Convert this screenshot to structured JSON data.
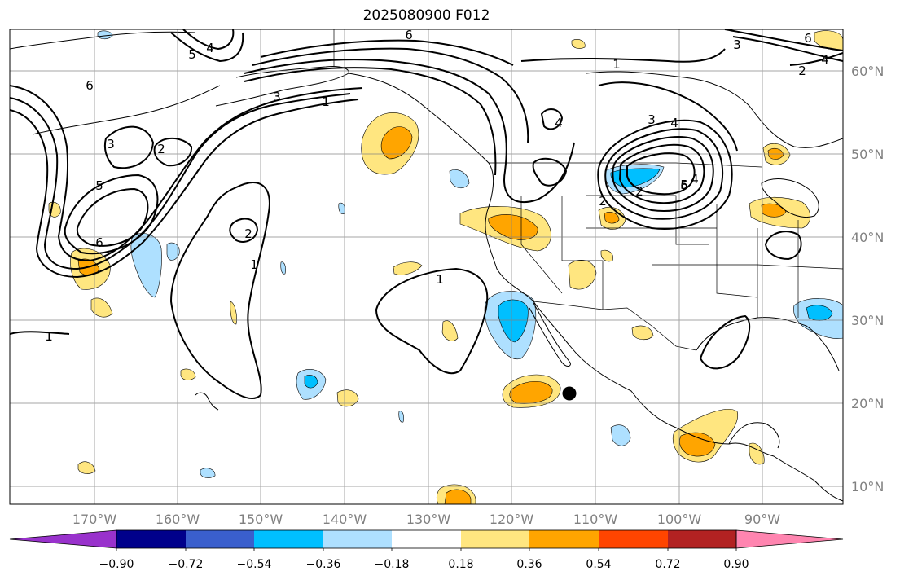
{
  "title": "2025080900 F012",
  "lon_ticks": [
    "170°W",
    "160°W",
    "150°W",
    "140°W",
    "130°W",
    "120°W",
    "110°W",
    "100°W",
    "90°W"
  ],
  "lat_ticks": [
    "60°N",
    "50°N",
    "40°N",
    "30°N",
    "20°N",
    "10°N"
  ],
  "colorbar": {
    "labels": [
      "−0.90",
      "−0.72",
      "−0.54",
      "−0.36",
      "−0.18",
      "0.18",
      "0.36",
      "0.54",
      "0.72",
      "0.90"
    ],
    "colors": [
      "#9932cc",
      "#00008b",
      "#3a5fcd",
      "#00bfff",
      "#aee0ff",
      "#ffffff",
      "#ffe680",
      "#ffa500",
      "#ff4500",
      "#b22222",
      "#ff85b0"
    ]
  },
  "contour_labels": [
    "1",
    "2",
    "3",
    "4",
    "5",
    "6"
  ],
  "colors": {
    "contour": "#000000",
    "grid": "#808080",
    "light_blue": "#aee0ff",
    "deep_sky": "#00bfff",
    "yellow": "#ffe680",
    "orange": "#ffa500"
  }
}
